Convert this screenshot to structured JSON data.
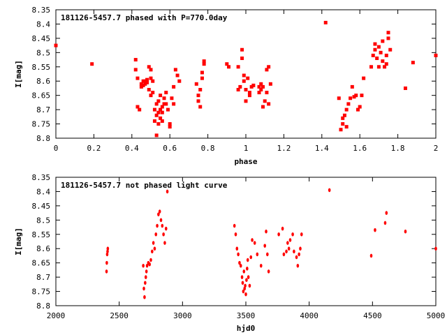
{
  "chart_data": [
    {
      "type": "scatter",
      "title": "181126-5457.7 phased with P=770.0day",
      "xlabel": "phase",
      "ylabel": "I[mag]",
      "xlim": [
        0,
        2
      ],
      "ylim": [
        8.8,
        8.35
      ],
      "y_inverted": true,
      "xticks": [
        "0",
        "0.2",
        "0.4",
        "0.6",
        "0.8",
        "1",
        "1.2",
        "1.4",
        "1.6",
        "1.8",
        "2"
      ],
      "yticks": [
        "8.35",
        "8.4",
        "8.45",
        "8.5",
        "8.55",
        "8.6",
        "8.65",
        "8.7",
        "8.75",
        "8.8"
      ],
      "marker_color": "#ff0000",
      "grid": false,
      "series": [
        {
          "x": [
            0.0,
            0.19,
            0.42,
            0.42,
            0.43,
            0.43,
            0.44,
            0.45,
            0.45,
            0.46,
            0.46,
            0.47,
            0.47,
            0.48,
            0.48,
            0.49,
            0.49,
            0.5,
            0.5,
            0.5,
            0.51,
            0.51,
            0.52,
            0.52,
            0.53,
            0.53,
            0.53,
            0.54,
            0.54,
            0.54,
            0.55,
            0.55,
            0.55,
            0.56,
            0.56,
            0.56,
            0.57,
            0.57,
            0.58,
            0.58,
            0.59,
            0.6,
            0.6,
            0.61,
            0.62,
            0.62,
            0.63,
            0.64,
            0.65,
            0.74,
            0.75,
            0.75,
            0.76,
            0.76,
            0.77,
            0.77,
            0.78,
            0.78,
            0.9,
            0.91,
            0.96,
            0.96,
            0.97,
            0.98,
            0.98,
            0.99,
            0.99,
            1.0,
            1.0,
            1.01,
            1.02,
            1.02,
            1.03,
            1.04,
            1.07,
            1.07,
            1.08,
            1.08,
            1.09,
            1.09,
            1.1,
            1.11,
            1.11,
            1.12,
            1.12,
            1.13,
            1.42,
            1.49,
            1.5,
            1.51,
            1.51,
            1.52,
            1.53,
            1.53,
            1.54,
            1.55,
            1.56,
            1.57,
            1.58,
            1.59,
            1.6,
            1.61,
            1.62,
            1.66,
            1.67,
            1.68,
            1.68,
            1.69,
            1.7,
            1.7,
            1.71,
            1.72,
            1.72,
            1.73,
            1.74,
            1.74,
            1.75,
            1.75,
            1.76,
            1.84,
            1.88,
            2.0
          ],
          "y": [
            8.475,
            8.54,
            8.525,
            8.56,
            8.59,
            8.69,
            8.7,
            8.62,
            8.61,
            8.6,
            8.615,
            8.6,
            8.61,
            8.605,
            8.595,
            8.55,
            8.63,
            8.56,
            8.59,
            8.65,
            8.6,
            8.64,
            8.7,
            8.74,
            8.72,
            8.68,
            8.79,
            8.71,
            8.75,
            8.67,
            8.7,
            8.73,
            8.65,
            8.69,
            8.74,
            8.71,
            8.68,
            8.66,
            8.68,
            8.64,
            8.7,
            8.75,
            8.76,
            8.66,
            8.68,
            8.62,
            8.56,
            8.58,
            8.6,
            8.61,
            8.65,
            8.67,
            8.69,
            8.63,
            8.57,
            8.59,
            8.54,
            8.53,
            8.54,
            8.55,
            8.55,
            8.63,
            8.62,
            8.52,
            8.49,
            8.58,
            8.6,
            8.63,
            8.67,
            8.59,
            8.65,
            8.64,
            8.62,
            8.615,
            8.62,
            8.64,
            8.61,
            8.63,
            8.69,
            8.62,
            8.67,
            8.56,
            8.64,
            8.55,
            8.68,
            8.61,
            8.395,
            8.66,
            8.77,
            8.75,
            8.73,
            8.72,
            8.7,
            8.76,
            8.68,
            8.66,
            8.62,
            8.655,
            8.65,
            8.7,
            8.69,
            8.65,
            8.59,
            8.55,
            8.51,
            8.47,
            8.49,
            8.52,
            8.55,
            8.48,
            8.5,
            8.53,
            8.46,
            8.55,
            8.54,
            8.51,
            8.43,
            8.45,
            8.49,
            8.625,
            8.535,
            8.51
          ]
        }
      ]
    },
    {
      "type": "scatter",
      "title": "181126-5457.7 not phased light curve",
      "xlabel": "hjd0",
      "ylabel": "I[mag]",
      "xlim": [
        2000,
        5000
      ],
      "ylim": [
        8.8,
        8.35
      ],
      "y_inverted": true,
      "xticks": [
        "2000",
        "2500",
        "3000",
        "3500",
        "4000",
        "4500",
        "5000"
      ],
      "yticks": [
        "8.35",
        "8.4",
        "8.45",
        "8.5",
        "8.55",
        "8.6",
        "8.65",
        "8.7",
        "8.75",
        "8.8"
      ],
      "marker_color": "#ff0000",
      "grid": false,
      "series": [
        {
          "x": [
            2400,
            2402,
            2405,
            2408,
            2410,
            2690,
            2695,
            2700,
            2705,
            2710,
            2715,
            2720,
            2730,
            2740,
            2750,
            2760,
            2770,
            2780,
            2790,
            2800,
            2810,
            2820,
            2830,
            2840,
            2850,
            2860,
            2870,
            2880,
            3410,
            3420,
            3430,
            3440,
            3450,
            3460,
            3470,
            3475,
            3480,
            3485,
            3490,
            3495,
            3500,
            3505,
            3510,
            3515,
            3520,
            3530,
            3540,
            3550,
            3570,
            3590,
            3620,
            3650,
            3660,
            3670,
            3680,
            3760,
            3790,
            3800,
            3820,
            3830,
            3840,
            3850,
            3870,
            3880,
            3900,
            3910,
            3920,
            3930,
            3940,
            4160,
            4490,
            4520,
            4600,
            4610,
            4760,
            5000
          ],
          "y": [
            8.68,
            8.65,
            8.62,
            8.61,
            8.6,
            8.66,
            8.74,
            8.77,
            8.72,
            8.7,
            8.68,
            8.66,
            8.65,
            8.655,
            8.64,
            8.61,
            8.58,
            8.6,
            8.55,
            8.52,
            8.48,
            8.47,
            8.5,
            8.52,
            8.55,
            8.58,
            8.53,
            8.4,
            8.52,
            8.55,
            8.6,
            8.62,
            8.65,
            8.66,
            8.7,
            8.72,
            8.75,
            8.68,
            8.74,
            8.73,
            8.76,
            8.71,
            8.67,
            8.64,
            8.7,
            8.73,
            8.63,
            8.57,
            8.58,
            8.62,
            8.66,
            8.59,
            8.54,
            8.62,
            8.68,
            8.55,
            8.53,
            8.62,
            8.61,
            8.58,
            8.6,
            8.57,
            8.55,
            8.61,
            8.63,
            8.66,
            8.62,
            8.6,
            8.55,
            8.395,
            8.625,
            8.535,
            8.51,
            8.475,
            8.54,
            8.6
          ]
        }
      ]
    }
  ]
}
